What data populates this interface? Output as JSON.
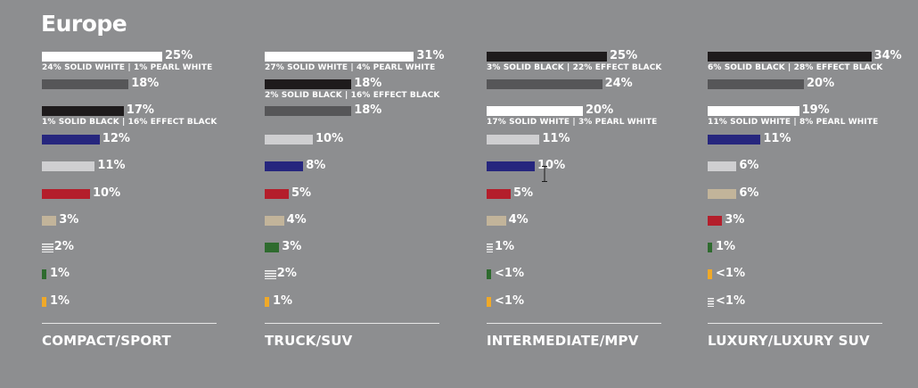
{
  "title": "Europe",
  "colors": {
    "white": "#ffffff",
    "black": "#1e1b1c",
    "dark_gray": "#565658",
    "light_gray": "#cfcfd1",
    "blue": "#26267e",
    "red": "#b41e2b",
    "beige": "#c2b49a",
    "green": "#2e6b2e",
    "yellow": "#f0a928"
  },
  "chart_data": [
    {
      "type": "bar",
      "orientation": "horizontal",
      "title": "COMPACT/SPORT",
      "series": [
        {
          "color": "white",
          "value": 25,
          "label": "25%",
          "note": "24% SOLID WHITE | 1% PEARL WHITE"
        },
        {
          "color": "dark_gray",
          "value": 18,
          "label": "18%"
        },
        {
          "color": "black",
          "value": 17,
          "label": "17%",
          "note": "1% SOLID BLACK | 16% EFFECT BLACK"
        },
        {
          "color": "blue",
          "value": 12,
          "label": "12%"
        },
        {
          "color": "light_gray",
          "value": 11,
          "label": "11%"
        },
        {
          "color": "red",
          "value": 10,
          "label": "10%"
        },
        {
          "color": "beige",
          "value": 3,
          "label": "3%"
        },
        {
          "color": "striped",
          "value": 2,
          "label": "2%"
        },
        {
          "color": "green",
          "value": 1,
          "label": "1%"
        },
        {
          "color": "yellow",
          "value": 1,
          "label": "1%"
        }
      ]
    },
    {
      "type": "bar",
      "orientation": "horizontal",
      "title": "TRUCK/SUV",
      "series": [
        {
          "color": "white",
          "value": 31,
          "label": "31%",
          "note": "27% SOLID WHITE | 4% PEARL WHITE"
        },
        {
          "color": "black",
          "value": 18,
          "label": "18%",
          "note": "2% SOLID BLACK | 16% EFFECT BLACK"
        },
        {
          "color": "dark_gray",
          "value": 18,
          "label": "18%"
        },
        {
          "color": "light_gray",
          "value": 10,
          "label": "10%"
        },
        {
          "color": "blue",
          "value": 8,
          "label": "8%"
        },
        {
          "color": "red",
          "value": 5,
          "label": "5%"
        },
        {
          "color": "beige",
          "value": 4,
          "label": "4%"
        },
        {
          "color": "green",
          "value": 3,
          "label": "3%"
        },
        {
          "color": "striped",
          "value": 2,
          "label": "2%"
        },
        {
          "color": "yellow",
          "value": 1,
          "label": "1%"
        }
      ]
    },
    {
      "type": "bar",
      "orientation": "horizontal",
      "title": "INTERMEDIATE/MPV",
      "series": [
        {
          "color": "black",
          "value": 25,
          "label": "25%",
          "note": "3% SOLID BLACK | 22% EFFECT BLACK"
        },
        {
          "color": "dark_gray",
          "value": 24,
          "label": "24%"
        },
        {
          "color": "white",
          "value": 20,
          "label": "20%",
          "note": "17% SOLID WHITE | 3% PEARL WHITE"
        },
        {
          "color": "light_gray",
          "value": 11,
          "label": "11%"
        },
        {
          "color": "blue",
          "value": 10,
          "label": "10%"
        },
        {
          "color": "red",
          "value": 5,
          "label": "5%"
        },
        {
          "color": "beige",
          "value": 4,
          "label": "4%"
        },
        {
          "color": "striped",
          "value": 1,
          "label": "1%"
        },
        {
          "color": "green",
          "value": 0.5,
          "label": "<1%"
        },
        {
          "color": "yellow",
          "value": 0.5,
          "label": "<1%"
        }
      ]
    },
    {
      "type": "bar",
      "orientation": "horizontal",
      "title": "LUXURY/LUXURY SUV",
      "series": [
        {
          "color": "black",
          "value": 34,
          "label": "34%",
          "note": "6% SOLID BLACK | 28% EFFECT BLACK"
        },
        {
          "color": "dark_gray",
          "value": 20,
          "label": "20%"
        },
        {
          "color": "white",
          "value": 19,
          "label": "19%",
          "note": "11% SOLID WHITE | 8% PEARL WHITE"
        },
        {
          "color": "blue",
          "value": 11,
          "label": "11%"
        },
        {
          "color": "light_gray",
          "value": 6,
          "label": "6%"
        },
        {
          "color": "beige",
          "value": 6,
          "label": "6%"
        },
        {
          "color": "red",
          "value": 3,
          "label": "3%"
        },
        {
          "color": "green",
          "value": 1,
          "label": "1%"
        },
        {
          "color": "yellow",
          "value": 0.5,
          "label": "<1%"
        },
        {
          "color": "striped",
          "value": 0.5,
          "label": "<1%"
        }
      ]
    }
  ]
}
